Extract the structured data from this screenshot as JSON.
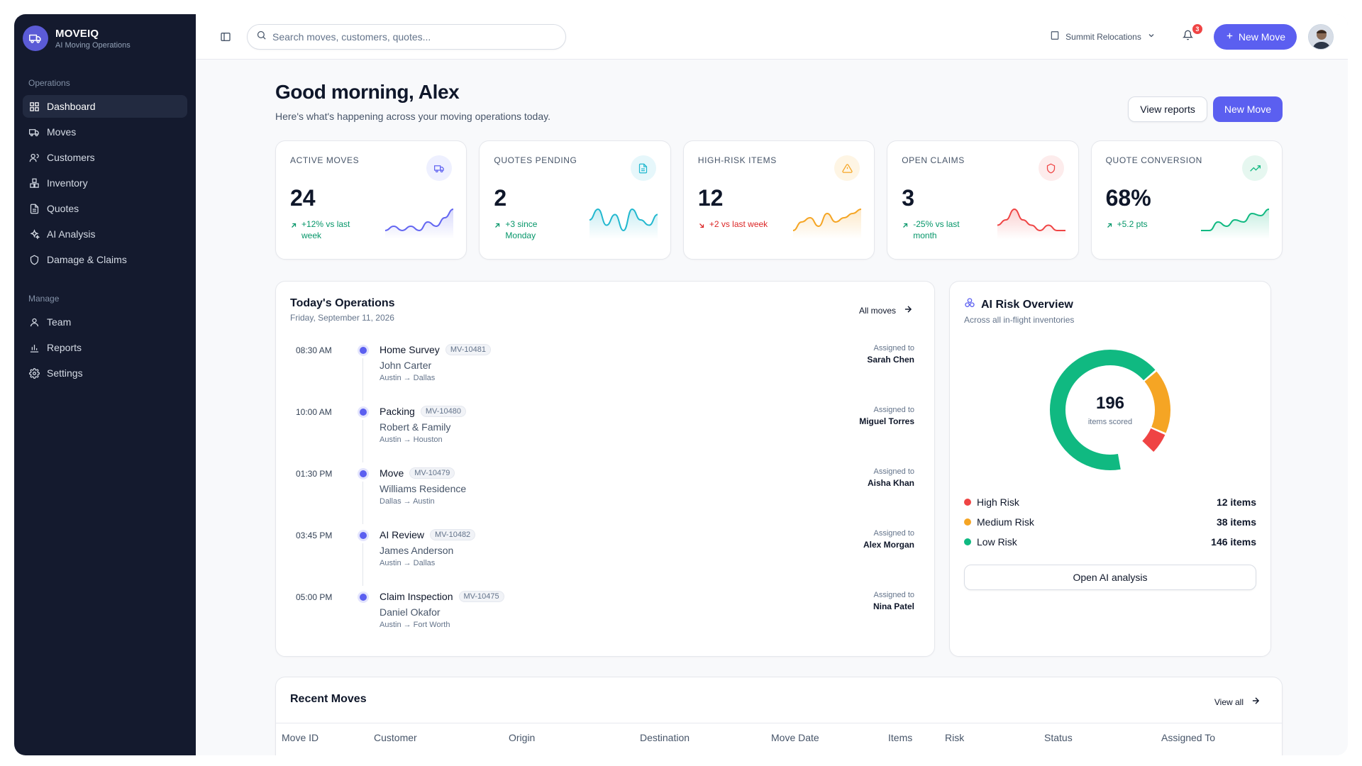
{
  "brand": {
    "name": "MOVEIQ",
    "subtitle": "AI Moving Operations"
  },
  "sidebar": {
    "section1": "Operations",
    "section2": "Manage",
    "ops_items": [
      {
        "label": "Dashboard",
        "icon": "grid-icon",
        "active": true
      },
      {
        "label": "Moves",
        "icon": "truck-icon"
      },
      {
        "label": "Customers",
        "icon": "users-icon"
      },
      {
        "label": "Inventory",
        "icon": "boxes-icon"
      },
      {
        "label": "Quotes",
        "icon": "document-icon"
      },
      {
        "label": "AI Analysis",
        "icon": "sparkles-icon"
      },
      {
        "label": "Damage & Claims",
        "icon": "shield-icon"
      }
    ],
    "manage_items": [
      {
        "label": "Team",
        "icon": "user-icon"
      },
      {
        "label": "Reports",
        "icon": "bar-chart-icon"
      },
      {
        "label": "Settings",
        "icon": "gear-icon"
      }
    ]
  },
  "topbar": {
    "search_placeholder": "Search moves, customers, quotes...",
    "org": "Summit Relocations",
    "notifications": "3",
    "new_move": "New Move"
  },
  "header": {
    "greeting": "Good morning, Alex",
    "subtitle": "Here's what's happening across your moving operations today.",
    "view_reports": "View reports",
    "new_move": "New Move"
  },
  "kpis": [
    {
      "label": "ACTIVE MOVES",
      "value": "24",
      "delta": "+12% vs last week",
      "trend": "up",
      "color": "#6366f1",
      "icon_bg": "#eef0ff",
      "icon": "truck-icon",
      "spark": [
        6,
        5,
        6,
        5,
        6,
        4,
        5,
        3,
        1
      ]
    },
    {
      "label": "QUOTES PENDING",
      "value": "2",
      "delta": "+3 since Monday",
      "trend": "up",
      "color": "#22b8cf",
      "icon_bg": "#e6f7fb",
      "icon": "document-icon",
      "spark": [
        3,
        1,
        4,
        2,
        5,
        1,
        3,
        4,
        2
      ]
    },
    {
      "label": "HIGH-RISK ITEMS",
      "value": "12",
      "delta": "+2 vs last week",
      "trend": "down",
      "color": "#f5a524",
      "icon_bg": "#fef5e4",
      "icon": "warning-icon",
      "spark": [
        6,
        4,
        3,
        5,
        2,
        4,
        3,
        2,
        1
      ]
    },
    {
      "label": "OPEN CLAIMS",
      "value": "3",
      "delta": "-25% vs last month",
      "trend": "up",
      "color": "#ef4444",
      "icon_bg": "#fdecec",
      "icon": "shield-icon",
      "spark": [
        4,
        3,
        1,
        3,
        4,
        5,
        4,
        5,
        5
      ]
    },
    {
      "label": "QUOTE CONVERSION",
      "value": "68%",
      "delta": "+5.2 pts",
      "trend": "up",
      "color": "#10b981",
      "icon_bg": "#e6f7f0",
      "icon": "trending-up-icon",
      "spark": [
        4,
        4,
        3.6,
        3.8,
        3.5,
        3.6,
        3.2,
        3.3,
        3
      ]
    }
  ],
  "operations": {
    "title": "Today's Operations",
    "date": "Friday, September 11, 2026",
    "all_moves": "All moves",
    "assigned_label": "Assigned to",
    "items": [
      {
        "time": "08:30 AM",
        "title": "Home Survey",
        "id": "MV-10481",
        "customer": "John Carter",
        "route": "Austin → Dallas",
        "assignee": "Sarah Chen"
      },
      {
        "time": "10:00 AM",
        "title": "Packing",
        "id": "MV-10480",
        "customer": "Robert & Family",
        "route": "Austin → Houston",
        "assignee": "Miguel Torres"
      },
      {
        "time": "01:30 PM",
        "title": "Move",
        "id": "MV-10479",
        "customer": "Williams Residence",
        "route": "Dallas → Austin",
        "assignee": "Aisha Khan"
      },
      {
        "time": "03:45 PM",
        "title": "AI Review",
        "id": "MV-10482",
        "customer": "James Anderson",
        "route": "Austin → Dallas",
        "assignee": "Alex Morgan"
      },
      {
        "time": "05:00 PM",
        "title": "Claim Inspection",
        "id": "MV-10475",
        "customer": "Daniel Okafor",
        "route": "Austin → Fort Worth",
        "assignee": "Nina Patel"
      }
    ]
  },
  "risk": {
    "title": "AI Risk Overview",
    "subtitle": "Across all in-flight inventories",
    "total": "196",
    "total_label": "items scored",
    "legend": [
      {
        "label": "High Risk",
        "value": "12 items",
        "count": 12,
        "color": "#ef4444"
      },
      {
        "label": "Medium Risk",
        "value": "38 items",
        "count": 38,
        "color": "#f5a524"
      },
      {
        "label": "Low Risk",
        "value": "146 items",
        "count": 146,
        "color": "#10b981"
      }
    ],
    "button": "Open AI analysis"
  },
  "recent": {
    "title": "Recent Moves",
    "view_all": "View all",
    "columns": [
      "Move ID",
      "Customer",
      "Origin",
      "Destination",
      "Move Date",
      "Items",
      "Risk",
      "Status",
      "Assigned To"
    ]
  }
}
